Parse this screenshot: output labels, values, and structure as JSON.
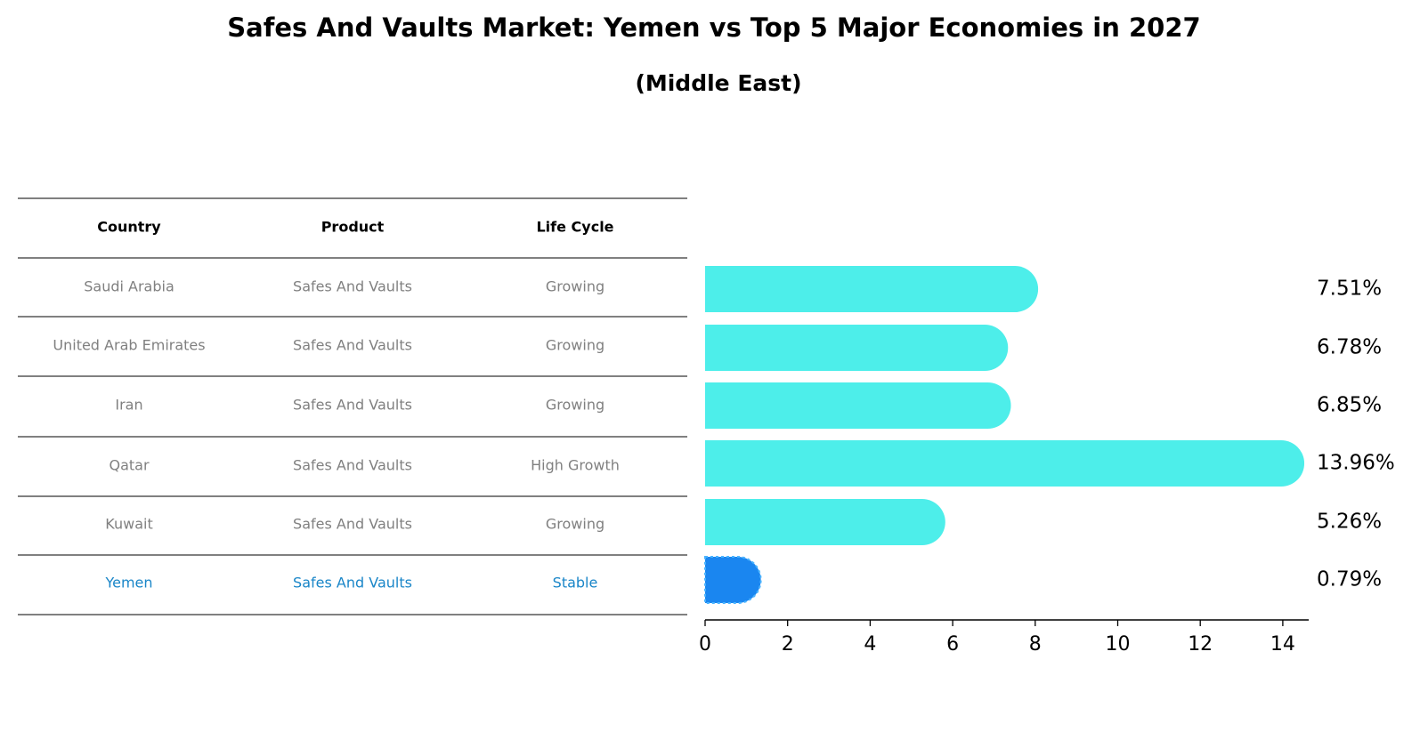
{
  "title": "Safes And Vaults Market: Yemen vs Top 5 Major Economies in 2027",
  "subtitle": "(Middle East)",
  "table": {
    "headers": [
      "Country",
      "Product",
      "Life Cycle"
    ],
    "rows": [
      {
        "country": "Saudi Arabia",
        "product": "Safes And Vaults",
        "life_cycle": "Growing"
      },
      {
        "country": "United Arab Emirates",
        "product": "Safes And Vaults",
        "life_cycle": "Growing"
      },
      {
        "country": "Iran",
        "product": "Safes And Vaults",
        "life_cycle": "Growing"
      },
      {
        "country": "Qatar",
        "product": "Safes And Vaults",
        "life_cycle": "High Growth"
      },
      {
        "country": "Kuwait",
        "product": "Safes And Vaults",
        "life_cycle": "Growing"
      },
      {
        "country": "Yemen",
        "product": "Safes And Vaults",
        "life_cycle": "Stable",
        "highlight": true
      }
    ]
  },
  "colors": {
    "bar": "#4deeea",
    "highlight": "#1a86f0",
    "table_text": "#808080",
    "highlight_text": "#1a86c8"
  },
  "chart_data": {
    "type": "bar",
    "orientation": "horizontal",
    "categories": [
      "Saudi Arabia",
      "United Arab Emirates",
      "Iran",
      "Qatar",
      "Kuwait",
      "Yemen"
    ],
    "values": [
      7.51,
      6.78,
      6.85,
      13.96,
      5.26,
      0.79
    ],
    "value_labels": [
      "7.51%",
      "6.78%",
      "6.85%",
      "13.96%",
      "5.26%",
      "0.79%"
    ],
    "xlim": [
      0,
      14.6
    ],
    "xticks": [
      0,
      2,
      4,
      6,
      8,
      10,
      12,
      14
    ],
    "highlight_index": 5
  }
}
